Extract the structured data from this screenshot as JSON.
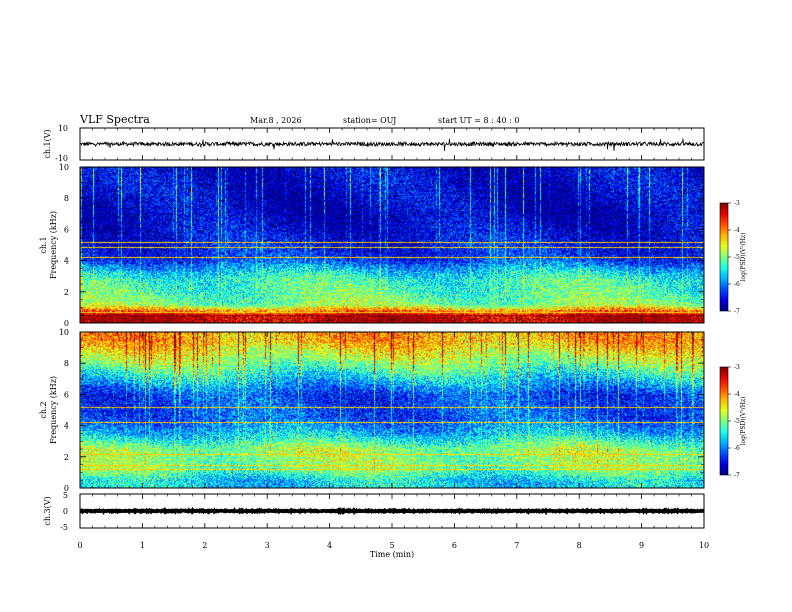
{
  "header": {
    "title": "VLF Spectra",
    "date": "Mar.8 , 2026",
    "station": "station= OUJ",
    "start": "start UT = 8 : 40 : 0"
  },
  "chart_data": {
    "type": "heatmap",
    "xlabel": "Time (min)",
    "xlim": [
      0,
      10
    ],
    "xticks": [
      "0",
      "1",
      "2",
      "3",
      "4",
      "5",
      "6",
      "7",
      "8",
      "9",
      "10"
    ],
    "panels": [
      {
        "name": "ch1-waveform",
        "type": "line",
        "ylabel": "ch.1(V)",
        "ylim": [
          -10,
          10
        ],
        "yticks": [
          "10",
          "-10"
        ],
        "baseline": 0,
        "noise_amplitude": 1.2
      },
      {
        "name": "ch1-spectrogram",
        "type": "heatmap",
        "ylabel_channel": "ch.1",
        "ylabel": "Frequency (kHz)",
        "ylim": [
          0,
          10
        ],
        "yticks": [
          "0",
          "2",
          "4",
          "6",
          "8",
          "10"
        ],
        "colorbar": {
          "label": "log(PSD)(V²/Hz)",
          "range": [
            -7,
            -3
          ],
          "ticks": [
            "-3",
            "-4",
            "-5",
            "-6",
            "-7"
          ]
        },
        "band_levels": [
          {
            "f": 0.5,
            "level": -3.2
          },
          {
            "f": 1.2,
            "level": -5.0
          },
          {
            "f": 2.0,
            "level": -5.2
          },
          {
            "f": 2.8,
            "level": -5.3
          },
          {
            "f": 3.3,
            "level": -5.6
          },
          {
            "f": 4.2,
            "level": -6.4
          },
          {
            "f": 5.5,
            "level": -6.6
          },
          {
            "f": 7.0,
            "level": -6.8
          },
          {
            "f": 9.0,
            "level": -6.7
          }
        ],
        "lines_kHz": [
          0.5,
          0.7,
          4.2,
          4.9,
          5.2
        ]
      },
      {
        "name": "ch2-spectrogram",
        "type": "heatmap",
        "ylabel_channel": "ch.2",
        "ylabel": "Frequency (kHz)",
        "ylim": [
          0,
          10
        ],
        "yticks": [
          "0",
          "2",
          "4",
          "6",
          "8",
          "10"
        ],
        "colorbar": {
          "label": "log(PSD)(V²/Hz)",
          "range": [
            -7,
            -3
          ],
          "ticks": [
            "-3",
            "-4",
            "-5",
            "-6",
            "-7"
          ]
        },
        "band_levels": [
          {
            "f": 0.5,
            "level": -5.6
          },
          {
            "f": 1.3,
            "level": -5.0
          },
          {
            "f": 2.5,
            "level": -4.9
          },
          {
            "f": 3.5,
            "level": -5.7
          },
          {
            "f": 4.5,
            "level": -6.2
          },
          {
            "f": 6.0,
            "level": -6.3
          },
          {
            "f": 8.0,
            "level": -5.0
          },
          {
            "f": 9.5,
            "level": -4.2
          }
        ],
        "lines_kHz": [
          1.2,
          1.5,
          2.2,
          4.2,
          5.2
        ]
      },
      {
        "name": "ch3-waveform",
        "type": "line",
        "ylabel": "ch.3(V)",
        "ylim": [
          -5,
          5
        ],
        "yticks": [
          "5",
          "0",
          "-5"
        ],
        "baseline": 0,
        "noise_amplitude": 0.15
      }
    ]
  }
}
